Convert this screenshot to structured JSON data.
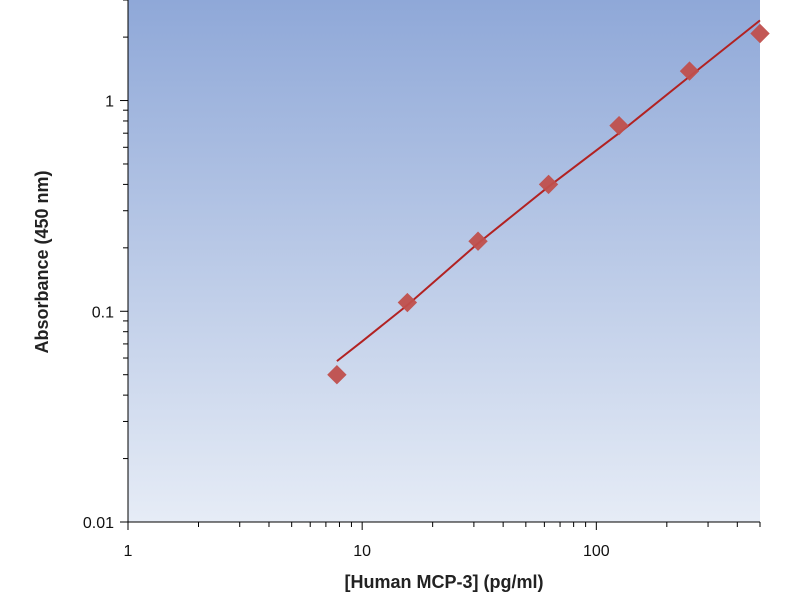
{
  "chart_data": {
    "type": "scatter",
    "xlabel": "[Human MCP-3] (pg/ml)",
    "ylabel": "Absorbance (450 nm)",
    "xscale": "log",
    "yscale": "log",
    "xlim": [
      1,
      500
    ],
    "ylim": [
      0.01,
      3
    ],
    "xticks": [
      1,
      10,
      100
    ],
    "xtick_labels": [
      "1",
      "10",
      "100"
    ],
    "yticks": [
      0.01,
      0.1,
      1
    ],
    "ytick_labels": [
      "0.01",
      "0.1",
      "1"
    ],
    "grid": false,
    "legend": "none",
    "series": [
      {
        "x": [
          7.8,
          15.6,
          31.25,
          62.5,
          125,
          250,
          500
        ],
        "y": [
          0.05,
          0.11,
          0.215,
          0.4,
          0.76,
          1.38,
          2.08
        ],
        "marker": "diamond",
        "color": "#c0504d"
      }
    ],
    "fit_curve": {
      "x": [
        7.8,
        10,
        15.6,
        31.25,
        62.5,
        125,
        250,
        500
      ],
      "y": [
        0.058,
        0.072,
        0.107,
        0.21,
        0.39,
        0.7,
        1.3,
        2.4
      ],
      "color": "#b22222"
    },
    "colors": {
      "plot_bg_top": "#8fa8d8",
      "plot_bg_bottom": "#e6ecf6",
      "marker": "#c0504d",
      "curve": "#b22222"
    }
  }
}
